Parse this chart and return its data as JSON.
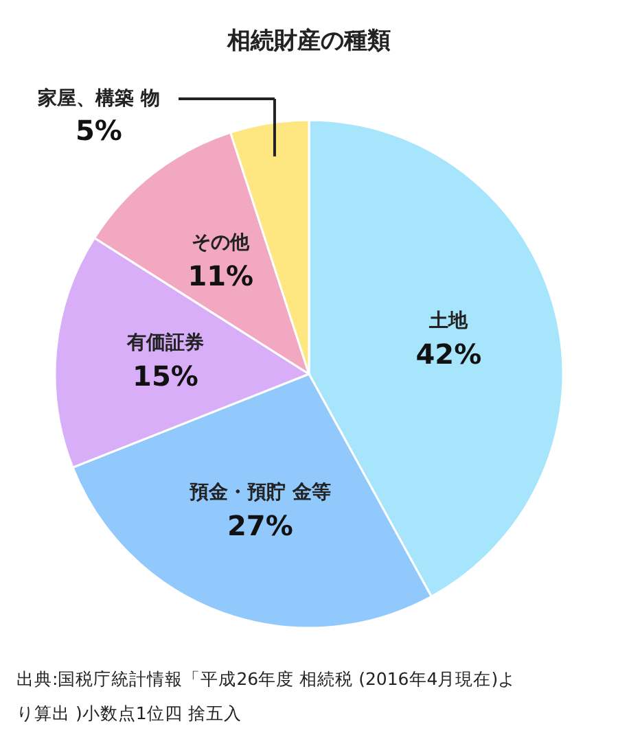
{
  "chart_data": {
    "type": "pie",
    "title": "相続財産の種類",
    "categories": [
      "土地",
      "預金・預貯 金等",
      "有価証券",
      "その他",
      "家屋、構築 物"
    ],
    "values": [
      42,
      27,
      15,
      11,
      5
    ],
    "value_labels": [
      "42%",
      "27%",
      "15%",
      "11%",
      "5%"
    ],
    "colors": [
      "#a6e5fc",
      "#92c9fd",
      "#d9aef9",
      "#f2a8c0",
      "#fee681"
    ],
    "annotations": [
      "出典:国税庁統計情報「平成26年度 相続税 (2016年4月現在)よ",
      "り算出 )小数点1位四 捨五入"
    ]
  }
}
